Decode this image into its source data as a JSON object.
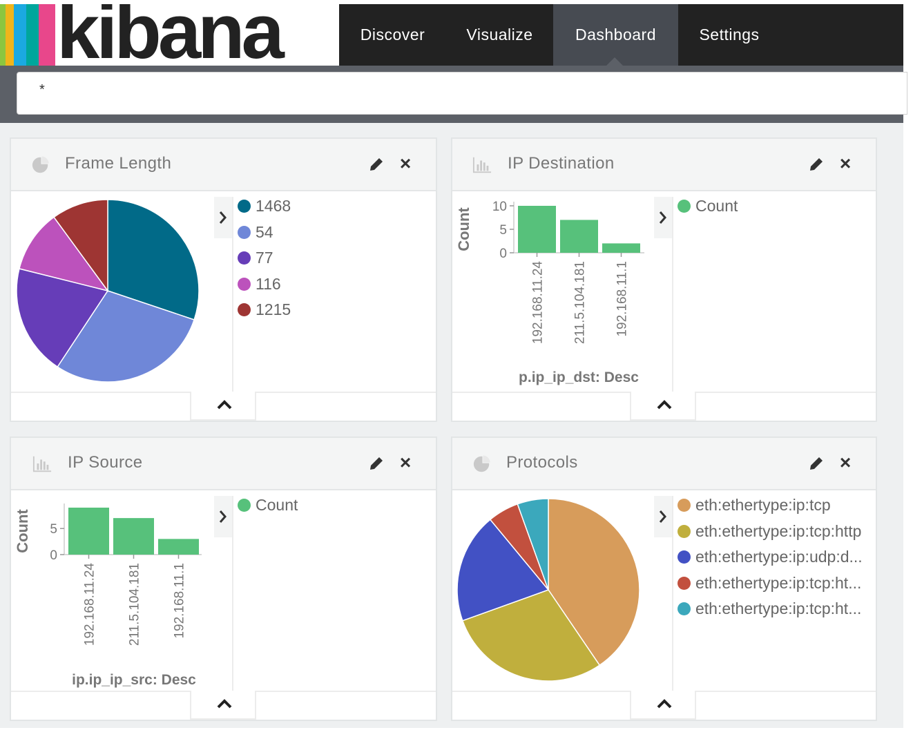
{
  "app": {
    "brand": "kibana",
    "stripe_colors": [
      "#8cc63f",
      "#f0b51b",
      "#1ba9e1",
      "#00a69c",
      "#e8478b"
    ]
  },
  "nav": {
    "items": [
      {
        "label": "Discover",
        "active": false
      },
      {
        "label": "Visualize",
        "active": false
      },
      {
        "label": "Dashboard",
        "active": true
      },
      {
        "label": "Settings",
        "active": false
      }
    ]
  },
  "query": {
    "value": "*"
  },
  "panels": {
    "frame_length": {
      "title": "Frame Length",
      "icon": "pie-chart-icon",
      "chart_data": {
        "type": "pie",
        "categories": [
          "1468",
          "54",
          "77",
          "116",
          "1215"
        ],
        "values": [
          30,
          29,
          19.5,
          11,
          10
        ],
        "colors": [
          "#016a88",
          "#6f87d8",
          "#663db8",
          "#bc52bc",
          "#9e3533"
        ]
      },
      "legend": [
        "1468",
        "54",
        "77",
        "116",
        "1215"
      ]
    },
    "ip_destination": {
      "title": "IP Destination",
      "icon": "bar-chart-icon",
      "chart_data": {
        "type": "bar",
        "categories": [
          "192.168.11.24",
          "211.5.104.181",
          "192.168.11.1"
        ],
        "values": [
          10,
          7,
          2
        ],
        "ylabel": "Count",
        "xlabel": "p.ip_ip_dst: Desc",
        "yticks": [
          "10",
          "5",
          "0"
        ],
        "ylim": [
          0,
          10
        ],
        "color": "#57c17b"
      },
      "legend": [
        "Count"
      ]
    },
    "ip_source": {
      "title": "IP Source",
      "icon": "bar-chart-icon",
      "chart_data": {
        "type": "bar",
        "categories": [
          "192.168.11.24",
          "211.5.104.181",
          "192.168.11.1"
        ],
        "values": [
          9,
          7,
          3
        ],
        "ylabel": "Count",
        "xlabel": "ip.ip_ip_src: Desc",
        "yticks": [
          "5",
          "0"
        ],
        "ylim": [
          0,
          9
        ],
        "color": "#57c17b"
      },
      "legend": [
        "Count"
      ]
    },
    "protocols": {
      "title": "Protocols",
      "icon": "pie-chart-icon",
      "chart_data": {
        "type": "pie",
        "categories": [
          "eth:ethertype:ip:tcp",
          "eth:ethertype:ip:tcp:http",
          "eth:ethertype:ip:udp:d...",
          "eth:ethertype:ip:tcp:ht...",
          "eth:ethertype:ip:tcp:ht..."
        ],
        "values": [
          40.5,
          29,
          19.5,
          5.5,
          5.5
        ],
        "colors": [
          "#d79c5b",
          "#c0af3d",
          "#4251c4",
          "#c2503e",
          "#3ba8bc"
        ]
      },
      "legend": [
        "eth:ethertype:ip:tcp",
        "eth:ethertype:ip:tcp:http",
        "eth:ethertype:ip:udp:d...",
        "eth:ethertype:ip:tcp:ht...",
        "eth:ethertype:ip:tcp:ht..."
      ]
    }
  }
}
